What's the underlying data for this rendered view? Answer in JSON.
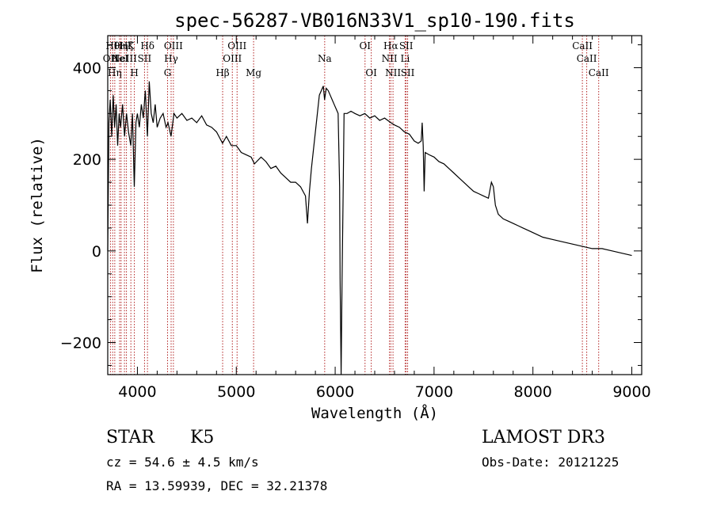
{
  "chart_data": {
    "type": "line",
    "title": "spec-56287-VB016N33V1_sp10-190.fits",
    "xlabel": "Wavelength (Å)",
    "ylabel": "Flux (relative)",
    "xlim": [
      3700,
      9100
    ],
    "ylim": [
      -270,
      470
    ],
    "x_ticks": [
      4000,
      5000,
      6000,
      7000,
      8000,
      9000
    ],
    "x_tick_labels": [
      "4000",
      "5000",
      "6000",
      "7000",
      "8000",
      "9000"
    ],
    "y_ticks": [
      -200,
      0,
      200,
      400
    ],
    "y_tick_labels": [
      "−200",
      "0",
      "200",
      "400"
    ],
    "spectrum_color": "#000000",
    "line_marker_color": "#b22222",
    "spectrum_points": [
      [
        3700,
        0
      ],
      [
        3712,
        280
      ],
      [
        3725,
        330
      ],
      [
        3740,
        250
      ],
      [
        3755,
        340
      ],
      [
        3770,
        270
      ],
      [
        3785,
        320
      ],
      [
        3800,
        230
      ],
      [
        3815,
        300
      ],
      [
        3830,
        270
      ],
      [
        3850,
        320
      ],
      [
        3870,
        250
      ],
      [
        3890,
        300
      ],
      [
        3910,
        260
      ],
      [
        3933,
        230
      ],
      [
        3950,
        300
      ],
      [
        3968,
        140
      ],
      [
        3985,
        280
      ],
      [
        4000,
        300
      ],
      [
        4020,
        270
      ],
      [
        4040,
        320
      ],
      [
        4060,
        290
      ],
      [
        4080,
        350
      ],
      [
        4101,
        250
      ],
      [
        4120,
        370
      ],
      [
        4140,
        300
      ],
      [
        4160,
        280
      ],
      [
        4180,
        320
      ],
      [
        4200,
        270
      ],
      [
        4230,
        290
      ],
      [
        4260,
        300
      ],
      [
        4290,
        270
      ],
      [
        4310,
        280
      ],
      [
        4340,
        250
      ],
      [
        4370,
        300
      ],
      [
        4400,
        290
      ],
      [
        4450,
        300
      ],
      [
        4500,
        285
      ],
      [
        4550,
        290
      ],
      [
        4600,
        280
      ],
      [
        4650,
        295
      ],
      [
        4700,
        275
      ],
      [
        4750,
        270
      ],
      [
        4800,
        260
      ],
      [
        4861,
        235
      ],
      [
        4900,
        250
      ],
      [
        4950,
        230
      ],
      [
        5000,
        230
      ],
      [
        5050,
        215
      ],
      [
        5100,
        210
      ],
      [
        5150,
        205
      ],
      [
        5184,
        190
      ],
      [
        5250,
        205
      ],
      [
        5300,
        195
      ],
      [
        5350,
        180
      ],
      [
        5400,
        185
      ],
      [
        5450,
        170
      ],
      [
        5500,
        160
      ],
      [
        5550,
        150
      ],
      [
        5600,
        150
      ],
      [
        5650,
        140
      ],
      [
        5700,
        120
      ],
      [
        5720,
        60
      ],
      [
        5740,
        130
      ],
      [
        5760,
        180
      ],
      [
        5780,
        220
      ],
      [
        5800,
        260
      ],
      [
        5820,
        300
      ],
      [
        5840,
        340
      ],
      [
        5860,
        350
      ],
      [
        5880,
        360
      ],
      [
        5893,
        330
      ],
      [
        5910,
        355
      ],
      [
        5930,
        350
      ],
      [
        5950,
        340
      ],
      [
        5970,
        330
      ],
      [
        5990,
        320
      ],
      [
        6010,
        310
      ],
      [
        6030,
        300
      ],
      [
        6045,
        140
      ],
      [
        6050,
        -60
      ],
      [
        6060,
        -270
      ],
      [
        6070,
        -60
      ],
      [
        6080,
        120
      ],
      [
        6090,
        300
      ],
      [
        6120,
        300
      ],
      [
        6160,
        305
      ],
      [
        6200,
        300
      ],
      [
        6250,
        295
      ],
      [
        6300,
        300
      ],
      [
        6350,
        290
      ],
      [
        6400,
        295
      ],
      [
        6450,
        285
      ],
      [
        6500,
        290
      ],
      [
        6563,
        280
      ],
      [
        6600,
        275
      ],
      [
        6650,
        270
      ],
      [
        6700,
        260
      ],
      [
        6750,
        255
      ],
      [
        6800,
        240
      ],
      [
        6840,
        235
      ],
      [
        6870,
        240
      ],
      [
        6880,
        280
      ],
      [
        6890,
        230
      ],
      [
        6900,
        130
      ],
      [
        6910,
        215
      ],
      [
        6950,
        210
      ],
      [
        7000,
        205
      ],
      [
        7050,
        195
      ],
      [
        7100,
        190
      ],
      [
        7150,
        180
      ],
      [
        7200,
        170
      ],
      [
        7250,
        160
      ],
      [
        7300,
        150
      ],
      [
        7350,
        140
      ],
      [
        7400,
        130
      ],
      [
        7450,
        125
      ],
      [
        7500,
        120
      ],
      [
        7550,
        115
      ],
      [
        7580,
        150
      ],
      [
        7600,
        140
      ],
      [
        7620,
        100
      ],
      [
        7650,
        80
      ],
      [
        7700,
        70
      ],
      [
        7750,
        65
      ],
      [
        7800,
        60
      ],
      [
        7850,
        55
      ],
      [
        7900,
        50
      ],
      [
        7950,
        45
      ],
      [
        8000,
        40
      ],
      [
        8100,
        30
      ],
      [
        8200,
        25
      ],
      [
        8300,
        20
      ],
      [
        8400,
        15
      ],
      [
        8500,
        10
      ],
      [
        8600,
        5
      ],
      [
        8700,
        5
      ],
      [
        8800,
        0
      ],
      [
        8900,
        -5
      ],
      [
        9000,
        -10
      ]
    ],
    "line_markers": [
      {
        "wavelength": 3727,
        "label": "OII",
        "row": 2
      },
      {
        "wavelength": 3750,
        "label": "Hθ",
        "row": 1
      },
      {
        "wavelength": 3771,
        "label": "Hη",
        "row": 3
      },
      {
        "wavelength": 3820,
        "label": "HeI",
        "row": 2
      },
      {
        "wavelength": 3835,
        "label": "Hη",
        "row": 1
      },
      {
        "wavelength": 3869,
        "label": "NeIII",
        "row": 2
      },
      {
        "wavelength": 3889,
        "label": "Hζ",
        "row": 1
      },
      {
        "wavelength": 3934,
        "label": "K",
        "row": 1
      },
      {
        "wavelength": 3969,
        "label": "H",
        "row": 3
      },
      {
        "wavelength": 4072,
        "label": "SII",
        "row": 2
      },
      {
        "wavelength": 4102,
        "label": "Hδ",
        "row": 1
      },
      {
        "wavelength": 4305,
        "label": "G",
        "row": 3
      },
      {
        "wavelength": 4341,
        "label": "Hγ",
        "row": 2
      },
      {
        "wavelength": 4364,
        "label": "OIII",
        "row": 1
      },
      {
        "wavelength": 4862,
        "label": "Hβ",
        "row": 3
      },
      {
        "wavelength": 4960,
        "label": "OIII",
        "row": 2
      },
      {
        "wavelength": 5008,
        "label": "OIII",
        "row": 1
      },
      {
        "wavelength": 5175,
        "label": "Mg",
        "row": 3
      },
      {
        "wavelength": 5894,
        "label": "Na",
        "row": 2
      },
      {
        "wavelength": 6302,
        "label": "OI",
        "row": 1
      },
      {
        "wavelength": 6365,
        "label": "OI",
        "row": 3
      },
      {
        "wavelength": 6549,
        "label": "NII",
        "row": 2
      },
      {
        "wavelength": 6563,
        "label": "Hα",
        "row": 1
      },
      {
        "wavelength": 6585,
        "label": "NII",
        "row": 3
      },
      {
        "wavelength": 6708,
        "label": "Li",
        "row": 2
      },
      {
        "wavelength": 6718,
        "label": "SII",
        "row": 1
      },
      {
        "wavelength": 6733,
        "label": "SII",
        "row": 3
      },
      {
        "wavelength": 8500,
        "label": "CaII",
        "row": 1
      },
      {
        "wavelength": 8544,
        "label": "CaII",
        "row": 2
      },
      {
        "wavelength": 8665,
        "label": "CaII",
        "row": 3
      }
    ]
  },
  "info": {
    "class_label": "STAR",
    "subclass": "K5",
    "survey": "LAMOST DR3",
    "cz": "cz = 54.6 ± 4.5 km/s",
    "obs_date": "Obs-Date: 20121225",
    "coords": "RA =  13.59939, DEC =  32.21378"
  }
}
